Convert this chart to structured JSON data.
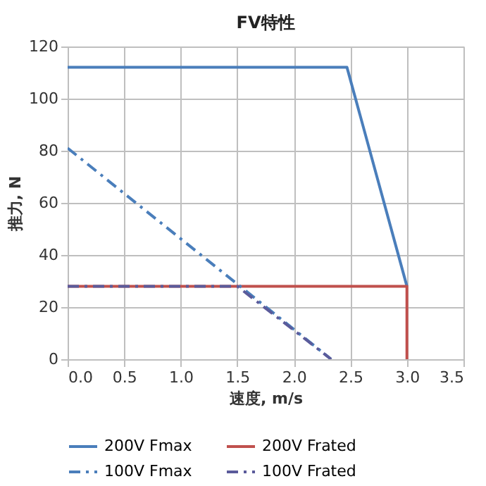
{
  "chart_data": {
    "type": "line",
    "title": "FV特性",
    "xlabel": "速度, m/s",
    "ylabel": "推力, N",
    "xlim": [
      0,
      3.5
    ],
    "xticks": [
      {
        "value": 0,
        "label": "0.0"
      },
      0.5,
      {
        "value": 1,
        "label": "1.0"
      },
      1.5,
      {
        "value": 2,
        "label": "2.0"
      },
      2.5,
      {
        "value": 3,
        "label": "3.0"
      },
      3.5
    ],
    "ylim": [
      0,
      120
    ],
    "yticks": [
      0,
      20,
      40,
      60,
      80,
      100,
      120
    ],
    "grid": true,
    "legend": "bottom",
    "marker": "none",
    "series": [
      {
        "name": "200V Fmax",
        "color": "#4a7ebb",
        "line_style": "solid",
        "x": [
          0,
          2.47,
          3.0
        ],
        "values": [
          112,
          112,
          28
        ]
      },
      {
        "name": "200V Frated",
        "color": "#c0504d",
        "line_style": "solid",
        "x": [
          0,
          3.0,
          3.0
        ],
        "values": [
          28,
          28,
          0
        ]
      },
      {
        "name": "100V Fmax",
        "color": "#4a7ebb",
        "line_style": "dashed",
        "x": [
          0,
          2.33
        ],
        "values": [
          81,
          0
        ]
      },
      {
        "name": "100V Frated",
        "color": "#5b5b9b",
        "line_style": "dashed",
        "x": [
          0,
          1.5,
          2.33
        ],
        "values": [
          28,
          28,
          0
        ]
      }
    ]
  }
}
